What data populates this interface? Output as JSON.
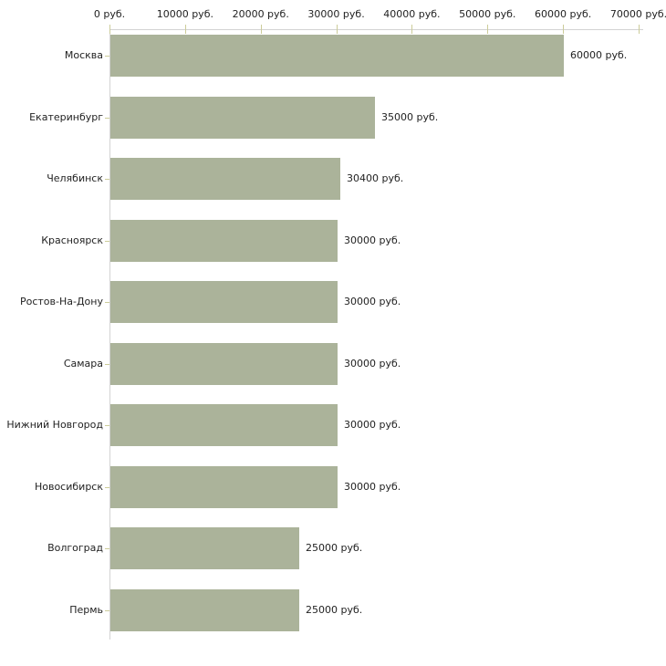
{
  "chart_data": {
    "type": "bar",
    "orientation": "horizontal",
    "title": "",
    "xlabel": "",
    "ylabel": "",
    "unit": "руб.",
    "xlim": [
      0,
      70000
    ],
    "grid": false,
    "legend": "none",
    "categories": [
      "Москва",
      "Екатеринбург",
      "Челябинск",
      "Красноярск",
      "Ростов-На-Дону",
      "Самара",
      "Нижний Новгород",
      "Новосибирск",
      "Волгоград",
      "Пермь"
    ],
    "values": [
      60000,
      35000,
      30400,
      30000,
      30000,
      30000,
      30000,
      30000,
      25000,
      25000
    ],
    "value_labels": [
      "60000 руб.",
      "35000 руб.",
      "30400 руб.",
      "30000 руб.",
      "30000 руб.",
      "30000 руб.",
      "30000 руб.",
      "30000 руб.",
      "25000 руб.",
      "25000 руб."
    ],
    "x_tick_values": [
      0,
      10000,
      20000,
      30000,
      40000,
      50000,
      60000,
      70000
    ],
    "x_tick_labels": [
      "0 руб.",
      "10000 руб.",
      "20000 руб.",
      "30000 руб.",
      "40000 руб.",
      "50000 руб.",
      "60000 руб.",
      "70000 руб."
    ],
    "colors": {
      "bar": "#abb39a",
      "axis_line": "#d3d3d3",
      "tick": "#cccc99",
      "text": "#222222",
      "background": "#ffffff"
    }
  }
}
